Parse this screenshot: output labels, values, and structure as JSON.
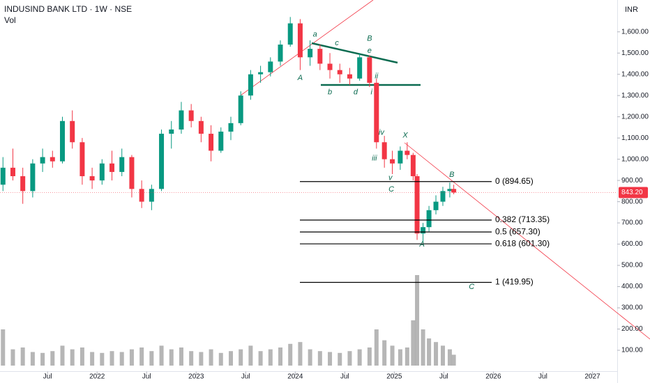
{
  "chart_data": {
    "type": "candlestick",
    "title": "INDUSIND BANK LTD · 1W · NSE",
    "subtitle": "Vol",
    "currency": "INR",
    "up_color": "#089981",
    "down_color": "#f23645",
    "x": [
      2021.05,
      2021.15,
      2021.25,
      2021.35,
      2021.45,
      2021.55,
      2021.65,
      2021.75,
      2021.85,
      2021.95,
      2022.05,
      2022.15,
      2022.25,
      2022.35,
      2022.45,
      2022.55,
      2022.65,
      2022.75,
      2022.85,
      2022.95,
      2023.05,
      2023.15,
      2023.25,
      2023.35,
      2023.45,
      2023.55,
      2023.65,
      2023.75,
      2023.85,
      2023.95,
      2024.05,
      2024.15,
      2024.25,
      2024.35,
      2024.45,
      2024.55,
      2024.65,
      2024.75,
      2024.82,
      2024.9,
      2024.98,
      2025.06,
      2025.13,
      2025.19,
      2025.23,
      2025.29,
      2025.35,
      2025.42,
      2025.49,
      2025.56,
      2025.6
    ],
    "open": [
      880,
      960,
      920,
      850,
      980,
      1010,
      990,
      1180,
      1080,
      920,
      900,
      980,
      940,
      1010,
      860,
      800,
      860,
      1120,
      1140,
      1230,
      1180,
      1120,
      1040,
      1130,
      1170,
      1300,
      1400,
      1410,
      1460,
      1540,
      1640,
      1480,
      1520,
      1450,
      1420,
      1400,
      1380,
      1480,
      1360,
      1080,
      1000,
      980,
      1040,
      1020,
      920,
      650,
      680,
      760,
      800,
      850,
      860
    ],
    "high": [
      1010,
      1050,
      960,
      1000,
      1050,
      1040,
      1200,
      1230,
      1100,
      960,
      1000,
      1040,
      1050,
      1020,
      900,
      880,
      1140,
      1180,
      1270,
      1260,
      1200,
      1160,
      1150,
      1200,
      1320,
      1420,
      1440,
      1480,
      1560,
      1670,
      1660,
      1560,
      1540,
      1500,
      1450,
      1430,
      1500,
      1490,
      1380,
      1110,
      1040,
      1060,
      1080,
      1030,
      930,
      700,
      780,
      830,
      870,
      890,
      880
    ],
    "low": [
      850,
      900,
      790,
      820,
      940,
      960,
      980,
      1050,
      880,
      860,
      880,
      900,
      920,
      820,
      770,
      760,
      850,
      1050,
      1120,
      1150,
      1080,
      990,
      1030,
      1090,
      1160,
      1280,
      1360,
      1390,
      1440,
      1530,
      1420,
      1440,
      1420,
      1380,
      1360,
      1350,
      1370,
      1340,
      1050,
      960,
      930,
      950,
      1000,
      900,
      620,
      605,
      660,
      740,
      780,
      820,
      835
    ],
    "close": [
      960,
      920,
      850,
      980,
      1010,
      990,
      1180,
      1080,
      920,
      900,
      980,
      940,
      1010,
      860,
      800,
      860,
      1120,
      1140,
      1230,
      1180,
      1120,
      1040,
      1130,
      1170,
      1300,
      1400,
      1410,
      1460,
      1540,
      1640,
      1480,
      1520,
      1450,
      1420,
      1400,
      1380,
      1480,
      1360,
      1080,
      1000,
      980,
      1040,
      1020,
      920,
      650,
      680,
      760,
      800,
      850,
      860,
      843.2
    ],
    "volume": [
      40,
      18,
      20,
      15,
      14,
      16,
      22,
      18,
      20,
      15,
      14,
      16,
      15,
      18,
      20,
      16,
      22,
      18,
      20,
      16,
      15,
      18,
      14,
      16,
      18,
      22,
      16,
      18,
      20,
      24,
      26,
      18,
      16,
      15,
      14,
      16,
      18,
      20,
      40,
      28,
      22,
      18,
      20,
      50,
      100,
      40,
      30,
      26,
      22,
      18,
      12
    ],
    "volume_color": "#9e9e9e",
    "y2lim": [
      0,
      100
    ],
    "xlim": [
      2021.02,
      2027.25
    ],
    "ylim": [
      0,
      1750
    ],
    "xticks": [
      {
        "value": 2021.5,
        "label": "Jul"
      },
      {
        "value": 2022,
        "label": "2022"
      },
      {
        "value": 2022.5,
        "label": "Jul"
      },
      {
        "value": 2023,
        "label": "2023"
      },
      {
        "value": 2023.5,
        "label": "Jul"
      },
      {
        "value": 2024,
        "label": "2024"
      },
      {
        "value": 2024.5,
        "label": "Jul"
      },
      {
        "value": 2025,
        "label": "2025"
      },
      {
        "value": 2025.5,
        "label": "Jul"
      },
      {
        "value": 2026,
        "label": "2026"
      },
      {
        "value": 2026.5,
        "label": "Jul"
      },
      {
        "value": 2027,
        "label": "2027"
      }
    ],
    "yticks": [
      {
        "value": 100,
        "label": "100.00"
      },
      {
        "value": 200,
        "label": "200.00"
      },
      {
        "value": 300,
        "label": "300.00"
      },
      {
        "value": 400,
        "label": "400.00"
      },
      {
        "value": 500,
        "label": "500.00"
      },
      {
        "value": 600,
        "label": "600.00"
      },
      {
        "value": 700,
        "label": "700.00"
      },
      {
        "value": 800,
        "label": "800.00"
      },
      {
        "value": 900,
        "label": "900.00"
      },
      {
        "value": 1000,
        "label": "1,000.00"
      },
      {
        "value": 1100,
        "label": "1,100.00"
      },
      {
        "value": 1200,
        "label": "1,200.00"
      },
      {
        "value": 1300,
        "label": "1,300.00"
      },
      {
        "value": 1400,
        "label": "1,400.00"
      },
      {
        "value": 1500,
        "label": "1,500.00"
      },
      {
        "value": 1600,
        "label": "1,600.00"
      }
    ],
    "last_price": {
      "value": 843.2,
      "label": "843.20"
    },
    "fib_levels": [
      {
        "value": 894.65,
        "label": "0 (894.65)"
      },
      {
        "value": 713.35,
        "label": "0.382 (713.35)"
      },
      {
        "value": 657.3,
        "label": "0.5 (657.30)"
      },
      {
        "value": 601.3,
        "label": "0.618 (601.30)"
      },
      {
        "value": 419.95,
        "label": "1 (419.95)"
      }
    ],
    "annotations": [
      {
        "text": "a",
        "x": 2024.2,
        "y": 1587
      },
      {
        "text": "A",
        "x": 2024.05,
        "y": 1383
      },
      {
        "text": "b",
        "x": 2024.35,
        "y": 1315
      },
      {
        "text": "c",
        "x": 2024.42,
        "y": 1547
      },
      {
        "text": "d",
        "x": 2024.61,
        "y": 1315
      },
      {
        "text": "B",
        "x": 2024.75,
        "y": 1567
      },
      {
        "text": "e",
        "x": 2024.75,
        "y": 1511
      },
      {
        "text": "ii",
        "x": 2024.82,
        "y": 1390
      },
      {
        "text": "i",
        "x": 2024.77,
        "y": 1315
      },
      {
        "text": "iv",
        "x": 2024.87,
        "y": 1124
      },
      {
        "text": "iii",
        "x": 2024.8,
        "y": 1003
      },
      {
        "text": "v",
        "x": 2024.96,
        "y": 911
      },
      {
        "text": "C",
        "x": 2024.97,
        "y": 858
      },
      {
        "text": "X",
        "x": 2025.11,
        "y": 1111
      },
      {
        "text": "B",
        "x": 2025.58,
        "y": 927
      },
      {
        "text": "A",
        "x": 2025.28,
        "y": 599
      },
      {
        "text": "C",
        "x": 2025.78,
        "y": 399
      }
    ]
  }
}
